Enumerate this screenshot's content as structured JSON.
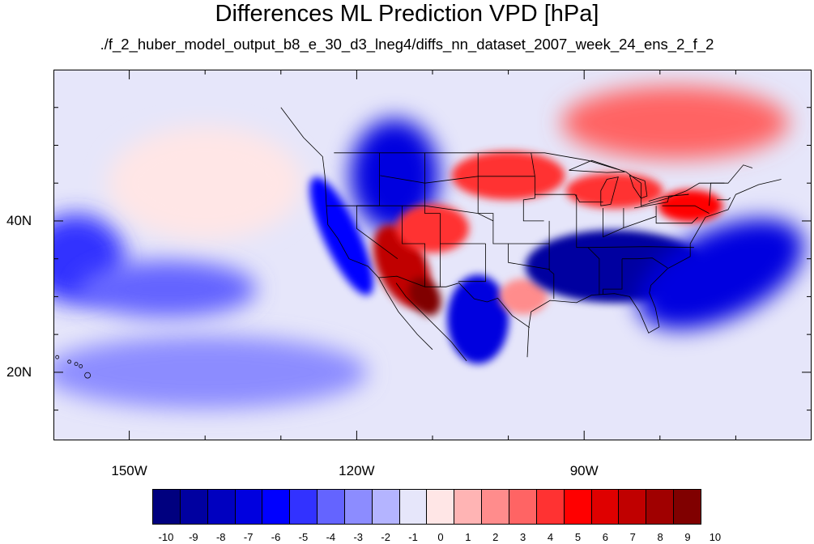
{
  "title": "Differences ML Prediction VPD [hPa]",
  "subtitle": "./f_2_huber_model_output_b8_e_30_d3_lneg4/diffs_nn_dataset_2007_week_24_ens_2_f_2",
  "map": {
    "projection": "cylindrical-equidistant",
    "lon_range": [
      -160,
      -60
    ],
    "lat_range": [
      11,
      60
    ],
    "lon_ticks": [
      {
        "value": -150,
        "label": "150W"
      },
      {
        "value": -120,
        "label": "120W"
      },
      {
        "value": -90,
        "label": "90W"
      }
    ],
    "lat_ticks": [
      {
        "value": 40,
        "label": "40N"
      },
      {
        "value": 20,
        "label": "20N"
      }
    ],
    "background_color": "#e6e6fa",
    "outline_color": "#000000",
    "features": [
      "coastlines",
      "us-state-boundaries",
      "national-boundaries",
      "great-lakes"
    ]
  },
  "field_regions": [
    {
      "name": "pacific-west-negative",
      "lon": -157,
      "lat": 35,
      "value": -4
    },
    {
      "name": "pacific-southwest-negative",
      "lon": -145,
      "lat": 31,
      "value": -3
    },
    {
      "name": "pacific-central-positive",
      "lon": -140,
      "lat": 45,
      "value": 1
    },
    {
      "name": "pacific-tropical-negative",
      "lon": -140,
      "lat": 20,
      "value": -2
    },
    {
      "name": "northwest-us-negative",
      "lon": -115,
      "lat": 46,
      "value": -6
    },
    {
      "name": "california-coast-negative",
      "lon": -122,
      "lat": 38,
      "value": -5
    },
    {
      "name": "southwest-desert-positive",
      "lon": -114,
      "lat": 34,
      "value": 8
    },
    {
      "name": "baja-peak-positive",
      "lon": -111,
      "lat": 30,
      "value": 10
    },
    {
      "name": "four-corners-positive",
      "lon": -110,
      "lat": 39,
      "value": 5
    },
    {
      "name": "mexico-interior-negative",
      "lon": -104,
      "lat": 27,
      "value": -6
    },
    {
      "name": "texas-positive",
      "lon": -98,
      "lat": 30,
      "value": 3
    },
    {
      "name": "northern-plains-positive",
      "lon": -100,
      "lat": 46,
      "value": 5
    },
    {
      "name": "great-lakes-positive",
      "lon": -86,
      "lat": 44,
      "value": 5
    },
    {
      "name": "southeast-us-negative",
      "lon": -86,
      "lat": 34,
      "value": -8
    },
    {
      "name": "atlantic-negative",
      "lon": -72,
      "lat": 33,
      "value": -6
    },
    {
      "name": "canada-positive",
      "lon": -78,
      "lat": 53,
      "value": 4
    },
    {
      "name": "northeast-positive",
      "lon": -76,
      "lat": 42,
      "value": 6
    }
  ],
  "colorbar": {
    "levels": [
      -10,
      -9,
      -8,
      -7,
      -6,
      -5,
      -4,
      -3,
      -2,
      -1,
      0,
      1,
      2,
      3,
      4,
      5,
      6,
      7,
      8,
      9,
      10
    ],
    "labels": [
      "-10",
      "-9",
      "-8",
      "-7",
      "-6",
      "-5",
      "-4",
      "-3",
      "-2",
      "-1",
      "0",
      "1",
      "2",
      "3",
      "4",
      "5",
      "6",
      "7",
      "8",
      "9",
      "10"
    ],
    "colors": [
      "#00007f",
      "#0000a0",
      "#0000c0",
      "#0000df",
      "#0000ff",
      "#3232ff",
      "#6464ff",
      "#8c8cff",
      "#b4b4ff",
      "#e6e6fa",
      "#ffe6e6",
      "#ffb4b4",
      "#ff8c8c",
      "#ff6464",
      "#ff3232",
      "#ff0000",
      "#df0000",
      "#c00000",
      "#a00000",
      "#800000"
    ]
  }
}
